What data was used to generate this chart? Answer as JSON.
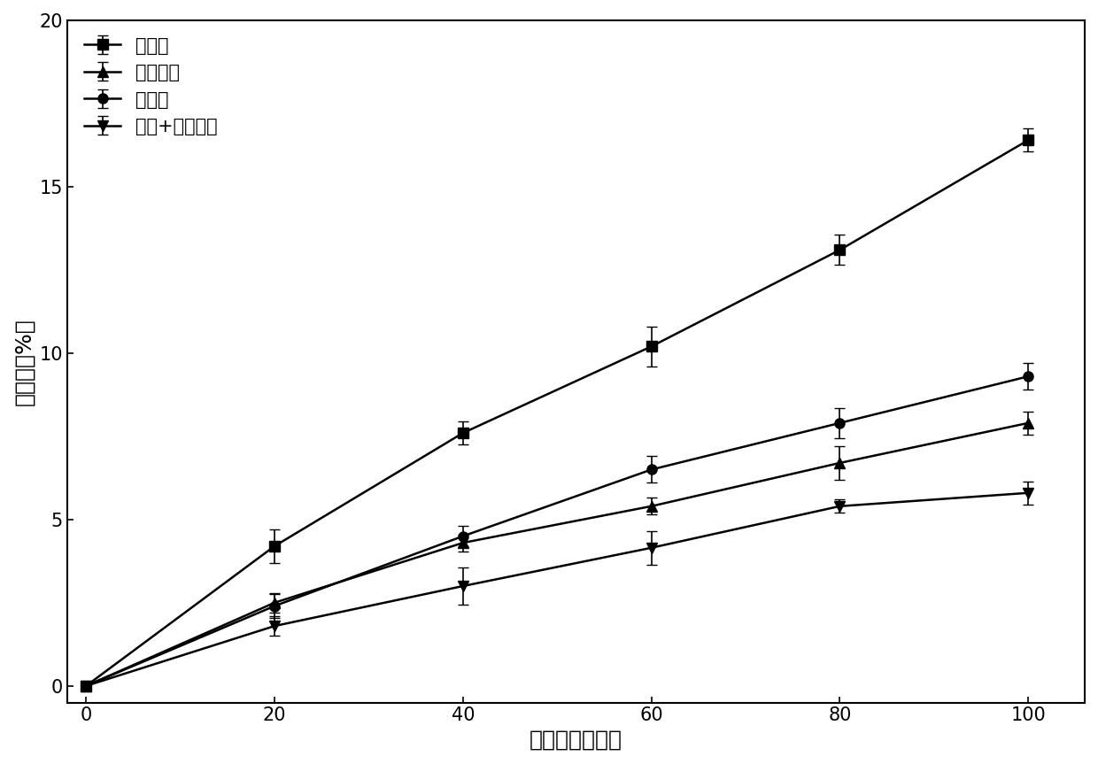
{
  "x": [
    0,
    20,
    40,
    60,
    80,
    100
  ],
  "series": [
    {
      "label": "对照组",
      "y": [
        0,
        4.2,
        7.6,
        10.2,
        13.1,
        16.4
      ],
      "yerr": [
        0,
        0.5,
        0.35,
        0.6,
        0.45,
        0.35
      ],
      "marker": "s",
      "color": "#000000"
    },
    {
      "label": "电解水组",
      "y": [
        0,
        2.5,
        4.3,
        5.4,
        6.7,
        7.9
      ],
      "yerr": [
        0,
        0.3,
        0.25,
        0.25,
        0.5,
        0.35
      ],
      "marker": "^",
      "color": "#000000"
    },
    {
      "label": "热激组",
      "y": [
        0,
        2.4,
        4.5,
        6.5,
        7.9,
        9.3
      ],
      "yerr": [
        0,
        0.35,
        0.3,
        0.4,
        0.45,
        0.4
      ],
      "marker": "o",
      "color": "#000000"
    },
    {
      "label": "热激+电解水组",
      "y": [
        0,
        1.8,
        3.0,
        4.15,
        5.4,
        5.8
      ],
      "yerr": [
        0,
        0.3,
        0.55,
        0.5,
        0.2,
        0.35
      ],
      "marker": "v",
      "color": "#000000"
    }
  ],
  "xlabel": "贮藏时间（天）",
  "ylabel": "失重率（%）",
  "xlim": [
    -2,
    106
  ],
  "ylim": [
    -0.5,
    20
  ],
  "yticks": [
    0,
    5,
    10,
    15,
    20
  ],
  "xticks": [
    0,
    20,
    40,
    60,
    80,
    100
  ],
  "line_width": 1.8,
  "marker_size": 8,
  "capsize": 4,
  "elinewidth": 1.2
}
